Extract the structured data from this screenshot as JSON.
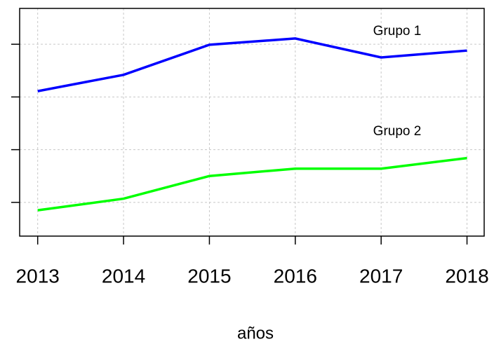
{
  "chart_data": {
    "type": "line",
    "x": [
      2013,
      2014,
      2015,
      2016,
      2017,
      2018
    ],
    "series": [
      {
        "name": "Grupo 1",
        "color": "#0000ff",
        "values": [
          3.11,
          3.42,
          3.99,
          4.11,
          3.75,
          3.88
        ]
      },
      {
        "name": "Grupo 2",
        "color": "#00ff00",
        "values": [
          0.85,
          1.07,
          1.5,
          1.64,
          1.64,
          1.84
        ]
      }
    ],
    "xlabel": "años",
    "xlim": [
      2012.79,
      2018.2
    ],
    "xticks": [
      2013,
      2014,
      2015,
      2016,
      2017,
      2018
    ],
    "ylim": [
      0.36,
      4.68
    ],
    "yticks": [
      1,
      2,
      3,
      4
    ],
    "grid": true
  }
}
